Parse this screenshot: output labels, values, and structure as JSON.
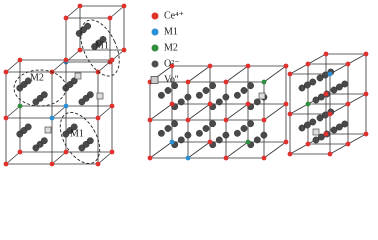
{
  "legend": [
    {
      "label": "Ce⁴⁺",
      "color": "#e0322b"
    },
    {
      "label": "M1",
      "color": "#2a8fd6"
    },
    {
      "label": "M2",
      "color": "#2f8f3e"
    },
    {
      "label": "O²⁻",
      "color": "#505050"
    },
    {
      "label": "Vo''",
      "color": "#cccccc"
    }
  ],
  "annotations": [
    "M1",
    "M2",
    "M1"
  ]
}
